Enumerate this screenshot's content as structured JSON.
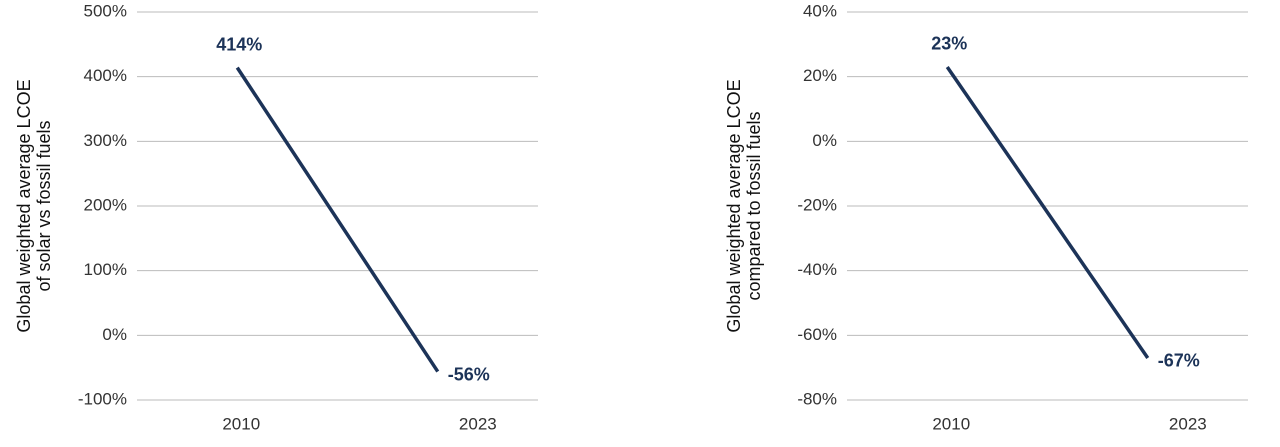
{
  "chart_data": [
    {
      "type": "line",
      "ylabel": [
        "Global weighted average LCOE",
        "of solar vs fossil fuels"
      ],
      "categories": [
        "2010",
        "2023"
      ],
      "values": [
        414,
        -56
      ],
      "value_labels": [
        "414%",
        "-56%"
      ],
      "color": "#1c3358",
      "ylim": [
        -100,
        500
      ],
      "yticks": [
        {
          "value": -100,
          "label": "-100%"
        },
        {
          "value": 0,
          "label": "0%"
        },
        {
          "value": 100,
          "label": "100%"
        },
        {
          "value": 200,
          "label": "200%"
        },
        {
          "value": 300,
          "label": "300%"
        },
        {
          "value": 400,
          "label": "400%"
        },
        {
          "value": 500,
          "label": "500%"
        }
      ],
      "grid": true
    },
    {
      "type": "line",
      "ylabel": [
        "Global weighted average LCOE",
        "compared to fossil fuels"
      ],
      "categories": [
        "2010",
        "2023"
      ],
      "values": [
        23,
        -67
      ],
      "value_labels": [
        "23%",
        "-67%"
      ],
      "color": "#1c3358",
      "ylim": [
        -80,
        40
      ],
      "yticks": [
        {
          "value": -80,
          "label": "-80%"
        },
        {
          "value": -60,
          "label": "-60%"
        },
        {
          "value": -40,
          "label": "-40%"
        },
        {
          "value": -20,
          "label": "-20%"
        },
        {
          "value": 0,
          "label": "0%"
        },
        {
          "value": 20,
          "label": "20%"
        },
        {
          "value": 40,
          "label": "40%"
        }
      ],
      "grid": true
    }
  ]
}
